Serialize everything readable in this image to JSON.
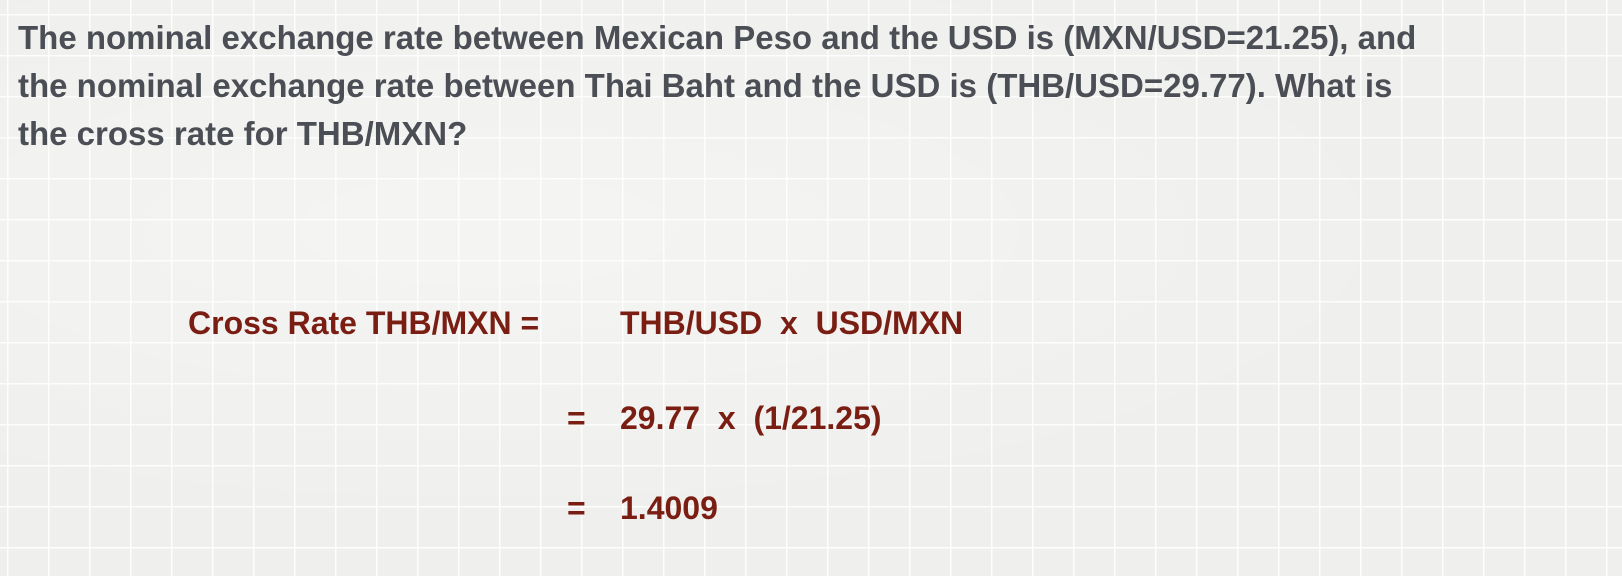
{
  "question": {
    "line1": "The nominal exchange rate between Mexican Peso and the USD is (MXN/USD=21.25), and",
    "line2": "the nominal exchange rate between Thai Baht and the USD is (THB/USD=29.77).  What is",
    "line3": "the cross rate for THB/MXN?"
  },
  "solution": {
    "label": "Cross Rate THB/MXN =",
    "step1": "THB/USD  x  USD/MXN",
    "step2_op": "=",
    "step2": "29.77  x  (1/21.25)",
    "step3_op": "=",
    "step3": "1.4009"
  },
  "colors": {
    "question_text": "#4b4f55",
    "solution_text": "#7a1d12",
    "background": "#efefed"
  }
}
